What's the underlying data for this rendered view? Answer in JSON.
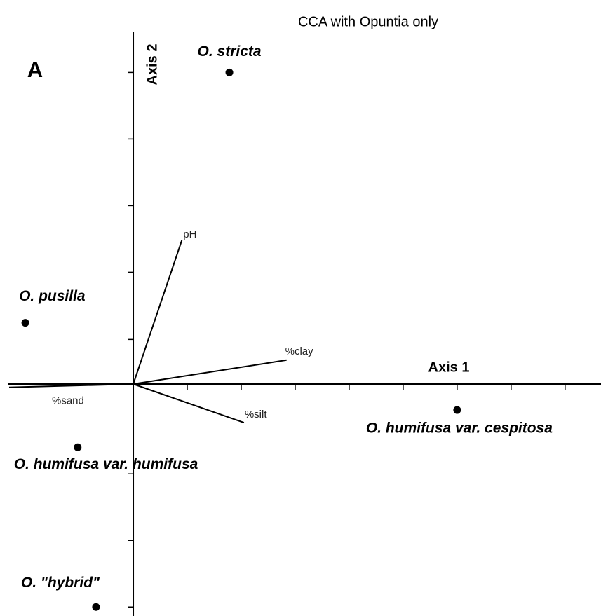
{
  "chart_data": {
    "type": "scatter",
    "title": "CCA with Opuntia only",
    "panel": "A",
    "xlabel": "Axis 1",
    "ylabel": "Axis 2",
    "xlim": [
      -2.3,
      8.6
    ],
    "ylim": [
      -3.45,
      5.3
    ],
    "xticks": [
      1,
      2,
      3,
      4,
      5,
      6,
      7,
      8
    ],
    "yticks": [
      -3.35,
      -2.35,
      -1.35,
      0.67,
      1.68,
      2.68,
      3.68,
      4.68
    ],
    "color": "#000000",
    "points": {
      "names": [
        "O. stricta",
        "O. pusilla",
        "O. humifusa var. cespitosa",
        "O. humifusa var. humifusa",
        "O. \"hybrid\""
      ],
      "x": [
        1.78,
        -2.0,
        6.0,
        -1.03,
        -0.69
      ],
      "y": [
        4.68,
        0.92,
        -0.39,
        -0.95,
        -3.35
      ]
    },
    "vectors": {
      "names": [
        "pH",
        "%clay",
        "%silt",
        "%sand"
      ],
      "x": [
        0.9,
        2.84,
        2.05,
        -2.3
      ],
      "y": [
        2.16,
        0.36,
        -0.58,
        -0.05
      ]
    }
  }
}
